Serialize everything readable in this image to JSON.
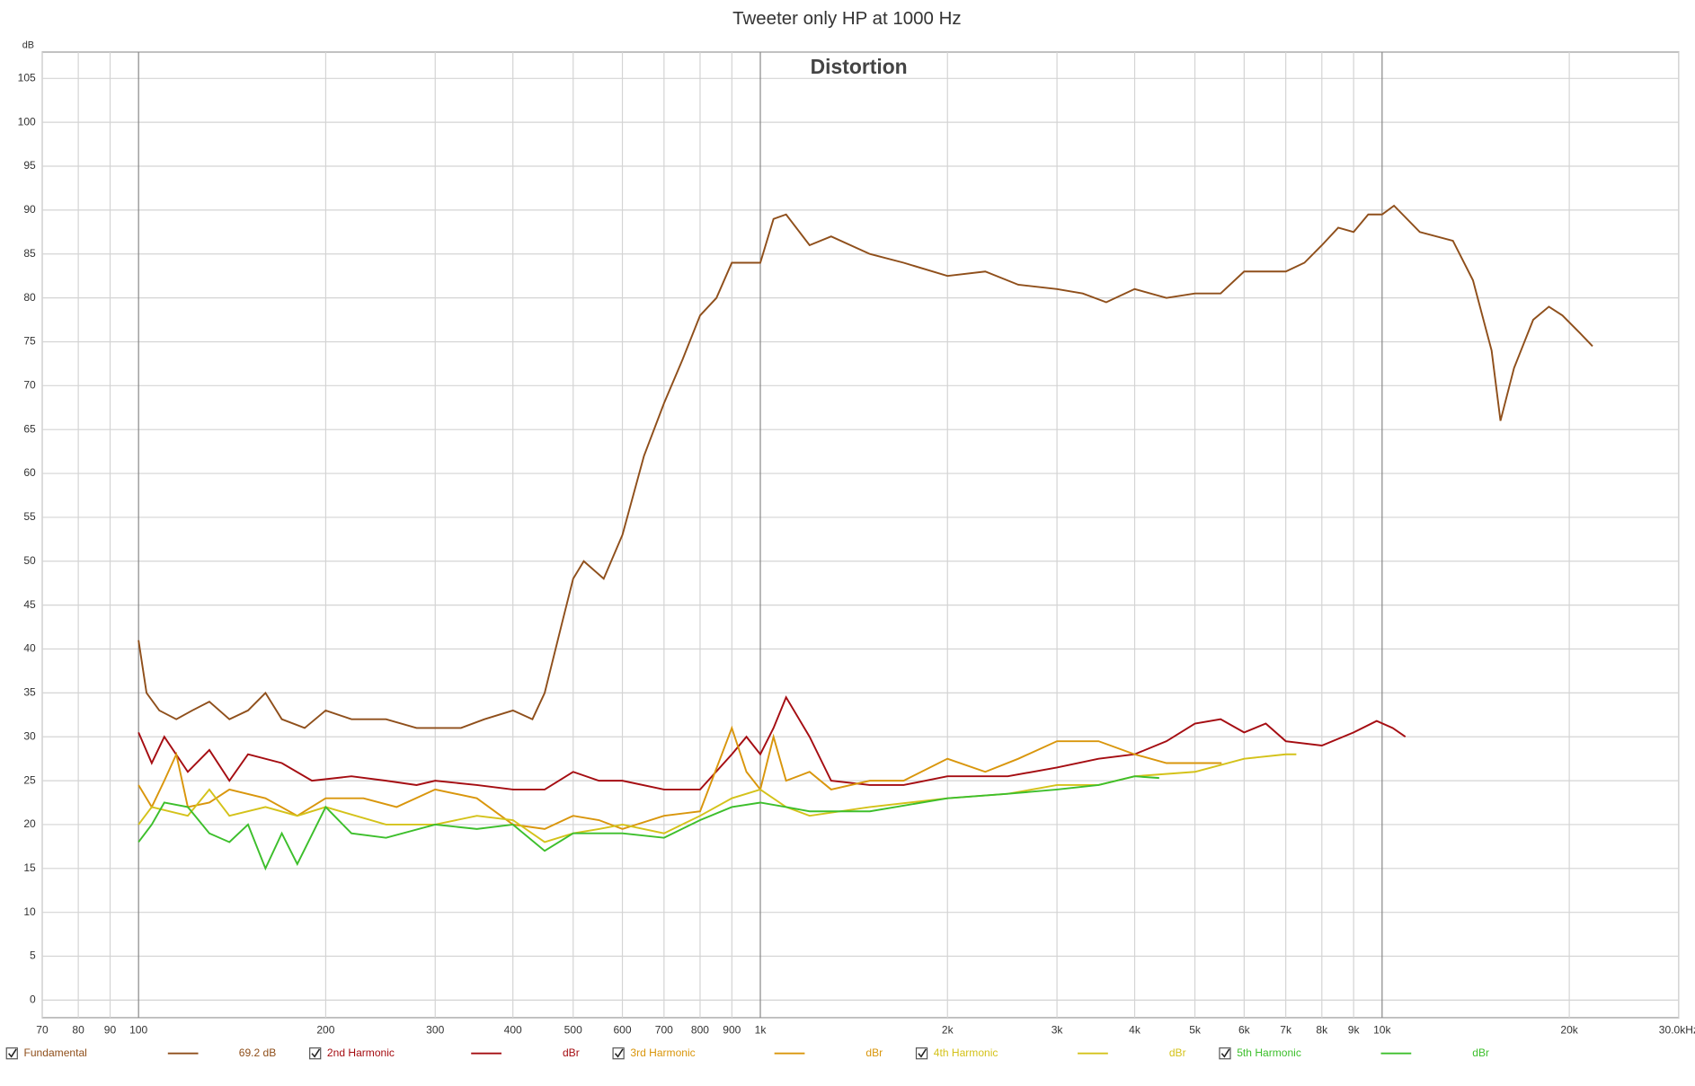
{
  "chart_data": {
    "type": "line",
    "title": "Tweeter only HP at 1000 Hz",
    "annotation": "Distortion",
    "y_label": "dB",
    "log_x": true,
    "grid": true,
    "xlim": [
      70,
      30000
    ],
    "ylim": [
      -2,
      108
    ],
    "xticks": [
      70,
      80,
      90,
      100,
      200,
      300,
      400,
      500,
      600,
      700,
      800,
      900,
      {
        "value": 1000,
        "label": "1k"
      },
      {
        "value": 2000,
        "label": "2k"
      },
      {
        "value": 3000,
        "label": "3k"
      },
      {
        "value": 4000,
        "label": "4k"
      },
      {
        "value": 5000,
        "label": "5k"
      },
      {
        "value": 6000,
        "label": "6k"
      },
      {
        "value": 7000,
        "label": "7k"
      },
      {
        "value": 8000,
        "label": "8k"
      },
      {
        "value": 9000,
        "label": "9k"
      },
      {
        "value": 10000,
        "label": "10k"
      },
      {
        "value": 20000,
        "label": "20k"
      },
      {
        "value": 30000,
        "label": "30.0kHz"
      }
    ],
    "yticks": [
      0,
      5,
      10,
      15,
      20,
      25,
      30,
      35,
      40,
      45,
      50,
      55,
      60,
      65,
      70,
      75,
      80,
      85,
      90,
      95,
      100,
      105
    ],
    "series": [
      {
        "name": "Fundamental",
        "legend_value": "69.2 dB",
        "color": "#8f4f1b",
        "x": [
          100,
          103,
          108,
          115,
          122,
          130,
          140,
          150,
          160,
          170,
          185,
          200,
          220,
          250,
          280,
          300,
          330,
          360,
          400,
          430,
          450,
          480,
          500,
          520,
          560,
          600,
          650,
          700,
          750,
          800,
          850,
          900,
          950,
          1000,
          1050,
          1100,
          1200,
          1300,
          1500,
          1700,
          2000,
          2300,
          2600,
          3000,
          3300,
          3600,
          4000,
          4500,
          5000,
          5500,
          6000,
          6500,
          7000,
          7500,
          8000,
          8500,
          9000,
          9500,
          10000,
          10450,
          11500,
          13000,
          14000,
          15000,
          15500,
          16300,
          17500,
          18550,
          19500,
          20800,
          21800
        ],
        "values": [
          41,
          35,
          33,
          32,
          33,
          34,
          32,
          33,
          35,
          32,
          31,
          33,
          32,
          32,
          31,
          31,
          31,
          32,
          33,
          32,
          35,
          43,
          48,
          50,
          48,
          53,
          62,
          68,
          73,
          78,
          80,
          84,
          84,
          84,
          89,
          89.5,
          86,
          87,
          85,
          84,
          82.5,
          83,
          81.5,
          81,
          80.5,
          79.5,
          81,
          80,
          80.5,
          80.5,
          83,
          83,
          83,
          84,
          86,
          88,
          87.5,
          89.5,
          89.5,
          90.5,
          87.5,
          86.5,
          82,
          74,
          66,
          72,
          77.5,
          79,
          78,
          76,
          74.5
        ]
      },
      {
        "name": "2nd Harmonic",
        "legend_value": "dBr",
        "color": "#a50d12",
        "x": [
          100,
          105,
          110,
          120,
          130,
          140,
          150,
          170,
          190,
          220,
          250,
          280,
          300,
          350,
          400,
          450,
          500,
          550,
          600,
          700,
          800,
          900,
          950,
          1000,
          1050,
          1100,
          1200,
          1300,
          1500,
          1700,
          2000,
          2500,
          3000,
          3500,
          4000,
          4500,
          5000,
          5500,
          6000,
          6500,
          7000,
          8000,
          9000,
          9800,
          10400,
          10900
        ],
        "values": [
          30.5,
          27,
          30,
          26,
          28.5,
          25,
          28,
          27,
          25,
          25.5,
          25,
          24.5,
          25,
          24.5,
          24,
          24,
          26,
          25,
          25,
          24,
          24,
          28,
          30,
          28,
          31,
          34.5,
          30,
          25,
          24.5,
          24.5,
          25.5,
          25.5,
          26.5,
          27.5,
          28,
          29.5,
          31.5,
          32,
          30.5,
          31.5,
          29.5,
          29,
          30.5,
          31.8,
          31,
          30
        ]
      },
      {
        "name": "3rd Harmonic",
        "legend_value": "dBr",
        "color": "#d9960c",
        "x": [
          100,
          105,
          110,
          115,
          120,
          130,
          140,
          160,
          180,
          200,
          230,
          260,
          300,
          350,
          400,
          450,
          500,
          550,
          600,
          700,
          800,
          900,
          950,
          1000,
          1050,
          1100,
          1200,
          1300,
          1500,
          1700,
          2000,
          2300,
          2600,
          3000,
          3500,
          4000,
          4500,
          5000,
          5520
        ],
        "values": [
          24.5,
          22,
          25,
          28,
          22,
          22.5,
          24,
          23,
          21,
          23,
          23,
          22,
          24,
          23,
          20,
          19.5,
          21,
          20.5,
          19.5,
          21,
          21.5,
          31,
          26,
          24,
          30,
          25,
          26,
          24,
          25,
          25,
          27.5,
          26,
          27.5,
          29.5,
          29.5,
          28,
          27,
          27,
          27
        ]
      },
      {
        "name": "4th Harmonic",
        "legend_value": "dBr",
        "color": "#d4c21a",
        "x": [
          100,
          105,
          120,
          130,
          140,
          160,
          180,
          200,
          250,
          300,
          350,
          400,
          450,
          500,
          550,
          600,
          700,
          800,
          900,
          1000,
          1100,
          1200,
          1500,
          2000,
          2500,
          3000,
          3500,
          4000,
          5000,
          6000,
          7000,
          7280
        ],
        "values": [
          20,
          22,
          21,
          24,
          21,
          22,
          21,
          22,
          20,
          20,
          21,
          20.5,
          18,
          19,
          19.5,
          20,
          19,
          21,
          23,
          24,
          22,
          21,
          22,
          23,
          23.5,
          24.5,
          24.5,
          25.5,
          26,
          27.5,
          28,
          28
        ]
      },
      {
        "name": "5th Harmonic",
        "legend_value": "dBr",
        "color": "#3dbf2c",
        "x": [
          100,
          105,
          110,
          120,
          130,
          140,
          150,
          160,
          170,
          180,
          200,
          220,
          250,
          300,
          350,
          400,
          450,
          500,
          550,
          600,
          700,
          800,
          900,
          1000,
          1100,
          1200,
          1500,
          2000,
          2500,
          3000,
          3500,
          4000,
          4380
        ],
        "values": [
          18,
          20,
          22.5,
          22,
          19,
          18,
          20,
          15,
          19,
          15.5,
          22,
          19,
          18.5,
          20,
          19.5,
          20,
          17,
          19,
          19,
          19,
          18.5,
          20.5,
          22,
          22.5,
          22,
          21.5,
          21.5,
          23,
          23.5,
          24,
          24.5,
          25.5,
          25.3
        ]
      }
    ]
  }
}
